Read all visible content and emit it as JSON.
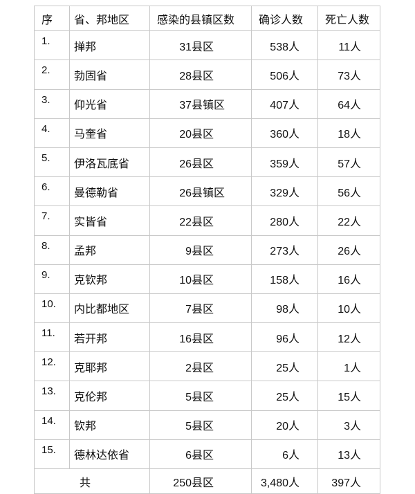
{
  "headers": [
    "序",
    "省、邦地区",
    "感染的县镇区数",
    "确诊人数",
    "死亡人数"
  ],
  "rows": [
    {
      "idx": "1.",
      "name": "掸邦",
      "counties": "31",
      "county_unit": "县区",
      "confirmed": "538",
      "deaths": "11"
    },
    {
      "idx": "2.",
      "name": "勃固省",
      "counties": "28",
      "county_unit": "县区",
      "confirmed": "506",
      "deaths": "73"
    },
    {
      "idx": "3.",
      "name": "仰光省",
      "counties": "37",
      "county_unit": "县镇区",
      "confirmed": "407",
      "deaths": "64"
    },
    {
      "idx": "4.",
      "name": "马奎省",
      "counties": "20",
      "county_unit": "县区",
      "confirmed": "360",
      "deaths": "18"
    },
    {
      "idx": "5.",
      "name": "伊洛瓦底省",
      "counties": "26",
      "county_unit": "县区",
      "confirmed": "359",
      "deaths": "57"
    },
    {
      "idx": "6.",
      "name": "曼德勒省",
      "counties": "26",
      "county_unit": "县镇区",
      "confirmed": "329",
      "deaths": "56"
    },
    {
      "idx": "7.",
      "name": "实皆省",
      "counties": "22",
      "county_unit": "县区",
      "confirmed": "280",
      "deaths": "22"
    },
    {
      "idx": "8.",
      "name": "孟邦",
      "counties": "9",
      "county_unit": "县区",
      "confirmed": "273",
      "deaths": "26"
    },
    {
      "idx": "9.",
      "name": "克钦邦",
      "counties": "10",
      "county_unit": "县区",
      "confirmed": "158",
      "deaths": "16"
    },
    {
      "idx": "10.",
      "name": "内比都地区",
      "counties": "7",
      "county_unit": "县区",
      "confirmed": "98",
      "deaths": "10"
    },
    {
      "idx": "11.",
      "name": "若开邦",
      "counties": "16",
      "county_unit": "县区",
      "confirmed": "96",
      "deaths": "12"
    },
    {
      "idx": "12.",
      "name": "克耶邦",
      "counties": "2",
      "county_unit": "县区",
      "confirmed": "25",
      "deaths": "1"
    },
    {
      "idx": "13.",
      "name": "克伦邦",
      "counties": "5",
      "county_unit": "县区",
      "confirmed": "25",
      "deaths": "15"
    },
    {
      "idx": "14.",
      "name": "钦邦",
      "counties": "5",
      "county_unit": "县区",
      "confirmed": "20",
      "deaths": "3"
    },
    {
      "idx": "15.",
      "name": "德林达依省",
      "counties": "6",
      "county_unit": "县区",
      "confirmed": "6",
      "deaths": "13"
    }
  ],
  "person_unit": "人",
  "total": {
    "label": "共",
    "counties": "250",
    "county_unit": "县区",
    "confirmed": "3,480",
    "deaths": "397"
  }
}
